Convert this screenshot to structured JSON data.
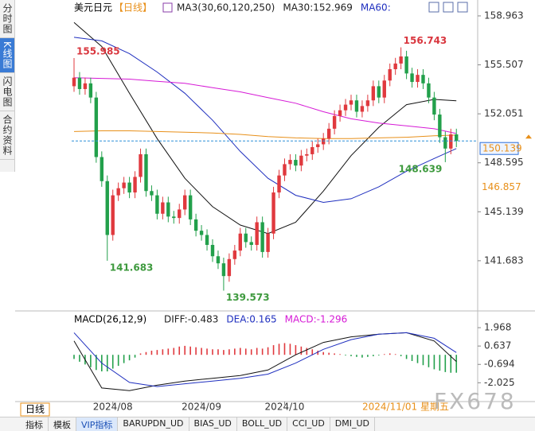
{
  "sidebar": {
    "tabs": [
      "分时图",
      "K线图",
      "闪电图",
      "合约资料"
    ],
    "active": 1
  },
  "chart_data": [
    {
      "type": "candlestick",
      "title": "美元日元",
      "subtitle": "【日线】",
      "header": [
        {
          "text": "MA3(30,60,120,250)",
          "color": "#222222"
        },
        {
          "text": "MA30:152.969",
          "color": "#222222"
        },
        {
          "text": "MA60:",
          "color": "#1f2fbf"
        }
      ],
      "categories": [
        null,
        null,
        null,
        null,
        null,
        null,
        null,
        "2024/08",
        null,
        null,
        null,
        null,
        null,
        null,
        null,
        null,
        null,
        null,
        null,
        null,
        null,
        null,
        null,
        "2024/09",
        null,
        null,
        null,
        null,
        null,
        null,
        null,
        null,
        null,
        null,
        null,
        null,
        null,
        null,
        "2024/10",
        null,
        null,
        null,
        null,
        null,
        null,
        null,
        null,
        null,
        null,
        null,
        null,
        null,
        null,
        null,
        null,
        null,
        null,
        null,
        null,
        null,
        null,
        null,
        null,
        null,
        null,
        null,
        null,
        null,
        null,
        null
      ],
      "open": [
        154.0,
        154.6,
        153.8,
        154.2,
        153.2,
        149.0,
        147.3,
        143.5,
        146.3,
        146.8,
        147.2,
        146.5,
        147.6,
        149.2,
        146.6,
        146.3,
        145.0,
        145.8,
        144.8,
        144.7,
        145.3,
        146.3,
        144.6,
        143.8,
        143.5,
        142.8,
        142.0,
        141.5,
        140.6,
        141.8,
        142.4,
        143.6,
        143.0,
        142.8,
        144.4,
        142.3,
        143.6,
        146.5,
        147.7,
        148.5,
        148.8,
        148.4,
        149.1,
        149.2,
        149.7,
        149.9,
        150.3,
        151.0,
        151.9,
        152.3,
        152.7,
        153.0,
        152.2,
        152.6,
        153.0,
        154.0,
        153.2,
        154.4,
        155.2,
        155.6,
        156.1,
        154.9,
        154.3,
        154.8,
        154.2,
        153.2,
        152.0,
        150.4,
        149.6,
        150.6
      ],
      "high": [
        155.985,
        155.0,
        154.6,
        154.6,
        153.6,
        149.4,
        147.7,
        146.7,
        147.2,
        147.6,
        147.6,
        148.0,
        149.6,
        149.6,
        147.0,
        146.7,
        146.2,
        146.2,
        145.2,
        145.7,
        146.7,
        146.7,
        145.0,
        144.2,
        143.9,
        143.2,
        142.4,
        141.9,
        142.2,
        142.8,
        144.0,
        144.0,
        143.4,
        144.8,
        144.8,
        144.0,
        146.9,
        148.1,
        148.9,
        149.2,
        149.2,
        149.5,
        149.6,
        150.1,
        150.3,
        150.7,
        151.4,
        152.3,
        152.7,
        153.1,
        153.4,
        153.4,
        153.0,
        153.4,
        154.4,
        154.4,
        154.8,
        155.6,
        156.0,
        156.743,
        156.5,
        155.3,
        155.2,
        155.2,
        154.6,
        153.6,
        152.4,
        150.8,
        151.0,
        151.0
      ],
      "low": [
        153.6,
        153.4,
        153.4,
        152.8,
        148.6,
        146.9,
        141.683,
        143.1,
        145.9,
        146.4,
        146.1,
        146.1,
        147.2,
        146.2,
        145.9,
        144.6,
        144.6,
        144.4,
        144.3,
        144.3,
        144.9,
        144.2,
        143.4,
        143.1,
        142.4,
        141.6,
        141.1,
        139.573,
        140.2,
        141.4,
        142.0,
        142.6,
        142.4,
        142.4,
        141.9,
        141.9,
        143.2,
        146.1,
        147.3,
        148.1,
        148.0,
        148.0,
        148.7,
        148.8,
        149.3,
        149.5,
        149.9,
        150.6,
        151.5,
        151.9,
        152.3,
        151.8,
        151.8,
        152.2,
        152.6,
        152.8,
        152.8,
        154.0,
        154.8,
        155.2,
        154.5,
        153.9,
        153.9,
        153.8,
        152.8,
        151.6,
        150.0,
        148.639,
        149.2,
        149.7
      ],
      "close": [
        154.6,
        153.8,
        154.2,
        153.2,
        149.0,
        147.3,
        143.5,
        146.3,
        146.8,
        147.2,
        146.5,
        147.6,
        149.2,
        146.6,
        146.3,
        145.0,
        145.8,
        144.8,
        144.7,
        145.3,
        146.3,
        144.6,
        143.8,
        143.5,
        142.8,
        142.0,
        141.5,
        140.6,
        141.8,
        142.4,
        143.6,
        143.0,
        142.8,
        144.4,
        142.3,
        143.6,
        146.5,
        147.7,
        148.5,
        148.8,
        148.4,
        149.1,
        149.2,
        149.7,
        149.9,
        150.3,
        151.0,
        151.9,
        152.3,
        152.7,
        153.0,
        152.2,
        152.6,
        153.0,
        154.0,
        153.2,
        154.4,
        155.2,
        155.6,
        156.1,
        154.9,
        154.3,
        154.8,
        154.2,
        153.2,
        152.0,
        150.4,
        149.6,
        150.6,
        150.139
      ],
      "up_color": "#e0393e",
      "down_color": "#22a04b",
      "ma_series": [
        {
          "color": "#111111",
          "x": [
            0,
            5,
            10,
            15,
            20,
            25,
            30,
            35,
            40,
            45,
            50,
            55,
            60,
            65,
            69
          ],
          "values": [
            158.5,
            156.8,
            153.5,
            150.3,
            147.5,
            145.5,
            144.2,
            143.6,
            144.4,
            146.6,
            149.1,
            151.1,
            152.7,
            153.07,
            152.969
          ]
        },
        {
          "color": "#1f2fbf",
          "x": [
            0,
            5,
            10,
            15,
            20,
            25,
            30,
            35,
            40,
            45,
            50,
            55,
            60,
            65,
            69
          ],
          "values": [
            157.45,
            157.2,
            156.3,
            155.0,
            153.5,
            151.6,
            149.4,
            147.5,
            146.3,
            145.8,
            146.06,
            146.9,
            148.0,
            148.9,
            149.6
          ]
        },
        {
          "color": "#d61ad6",
          "x": [
            0,
            5,
            10,
            15,
            20,
            25,
            30,
            35,
            40,
            45,
            50,
            55,
            60,
            65,
            69
          ],
          "values": [
            154.6,
            154.55,
            154.5,
            154.35,
            154.2,
            153.9,
            153.6,
            153.2,
            152.8,
            152.2,
            151.7,
            151.4,
            151.2,
            151.0,
            150.66
          ]
        },
        {
          "color": "#e8901a",
          "x": [
            0,
            5,
            10,
            15,
            20,
            25,
            30,
            35,
            40,
            45,
            50,
            55,
            60,
            65,
            69
          ],
          "values": [
            150.8,
            150.85,
            150.85,
            150.8,
            150.75,
            150.7,
            150.6,
            150.45,
            150.35,
            150.3,
            150.3,
            150.35,
            150.4,
            150.5,
            150.55
          ]
        }
      ],
      "annotations": [
        {
          "index": 0,
          "value": 155.985,
          "color": "#d9363e",
          "anchor": "start"
        },
        {
          "index": 6,
          "value": 141.683,
          "color": "#3e9a3e",
          "anchor": "start"
        },
        {
          "index": 27,
          "value": 139.573,
          "color": "#3e9a3e",
          "anchor": "start"
        },
        {
          "index": 59,
          "value": 156.743,
          "color": "#d9363e",
          "anchor": "start"
        },
        {
          "index": 67,
          "value": 148.639,
          "color": "#3e9a3e",
          "anchor": "end"
        }
      ],
      "current_price": 150.139,
      "price_tag": 146.857,
      "cursor_date": "2024/11/01 星期五",
      "ylim": [
        138.5,
        159.5
      ],
      "yticks": [
        141.683,
        145.139,
        148.595,
        152.051,
        155.507,
        158.963
      ]
    },
    {
      "type": "macd",
      "title": "MACD(26,12,9)",
      "header": [
        {
          "text": "DIFF:-0.483",
          "color": "#222222"
        },
        {
          "text": "DEA:0.165",
          "color": "#1f2fbf"
        },
        {
          "text": "MACD:-1.296",
          "color": "#d61ad6"
        }
      ],
      "histogram": [
        -0.3,
        -0.5,
        -0.7,
        -0.9,
        -1.1,
        -1.2,
        -1.2,
        -1.0,
        -0.8,
        -0.6,
        -0.4,
        -0.2,
        0.1,
        0.2,
        0.3,
        0.35,
        0.4,
        0.45,
        0.5,
        0.6,
        0.65,
        0.6,
        0.55,
        0.5,
        0.45,
        0.4,
        0.4,
        0.35,
        0.4,
        0.45,
        0.5,
        0.45,
        0.4,
        0.5,
        0.45,
        0.55,
        0.7,
        0.8,
        0.85,
        0.8,
        0.7,
        0.6,
        0.5,
        0.4,
        0.3,
        0.2,
        0.15,
        0.1,
        0.05,
        -0.05,
        -0.1,
        -0.15,
        -0.2,
        -0.15,
        -0.1,
        -0.05,
        0.05,
        0.1,
        0.05,
        -0.1,
        -0.3,
        -0.45,
        -0.6,
        -0.75,
        -0.9,
        -1.05,
        -1.15,
        -1.25,
        -1.3,
        -1.296
      ],
      "up_color": "#e0393e",
      "down_color": "#22a04b",
      "lines": [
        {
          "color": "#111111",
          "x": [
            0,
            5,
            10,
            15,
            20,
            25,
            30,
            35,
            40,
            45,
            50,
            55,
            60,
            65,
            69
          ],
          "values": [
            1.0,
            -2.4,
            -2.6,
            -2.2,
            -1.9,
            -1.7,
            -1.5,
            -1.1,
            0.0,
            0.9,
            1.3,
            1.5,
            1.6,
            1.0,
            -0.483
          ]
        },
        {
          "color": "#1f2fbf",
          "x": [
            0,
            5,
            10,
            15,
            20,
            25,
            30,
            35,
            40,
            45,
            50,
            55,
            60,
            65,
            69
          ],
          "values": [
            1.6,
            -0.6,
            -2.0,
            -2.3,
            -2.1,
            -1.9,
            -1.7,
            -1.4,
            -0.6,
            0.4,
            1.1,
            1.5,
            1.6,
            1.2,
            0.165
          ]
        }
      ],
      "ylim": [
        -3.1,
        2.95
      ],
      "yticks": [
        -2.025,
        -0.694,
        0.637,
        1.968
      ]
    }
  ],
  "footer": {
    "period": "日线",
    "tabs": [
      "指标",
      "模板",
      "VIP指标",
      "BARUPDN_UD",
      "BIAS_UD",
      "BOLL_UD",
      "CCI_UD",
      "DMI_UD"
    ],
    "active": 2,
    "watermark": "FX678"
  }
}
